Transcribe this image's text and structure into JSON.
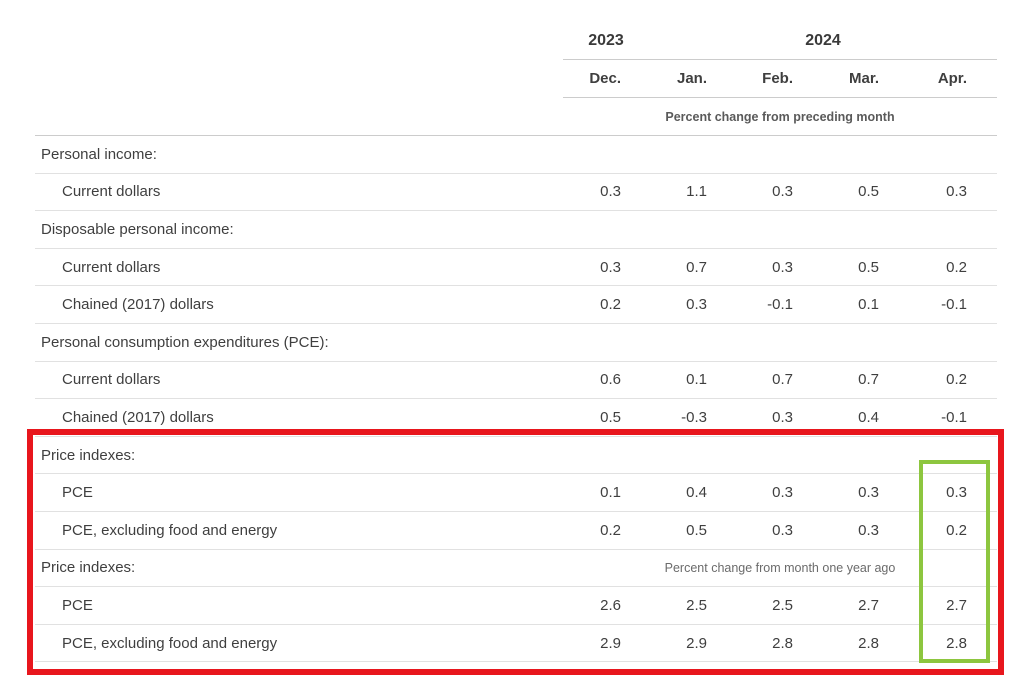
{
  "chart_data": {
    "type": "table",
    "year_groups": [
      {
        "label": "2023",
        "cols": 1
      },
      {
        "label": "2024",
        "cols": 4
      }
    ],
    "months": [
      "Dec.",
      "Jan.",
      "Feb.",
      "Mar.",
      "Apr."
    ],
    "top_unit_note": "Percent change from preceding month",
    "rows": [
      {
        "type": "section",
        "label": "Personal income:"
      },
      {
        "type": "data",
        "label": "Current dollars",
        "values": [
          "0.3",
          "1.1",
          "0.3",
          "0.5",
          "0.3"
        ]
      },
      {
        "type": "section",
        "label": "Disposable personal income:"
      },
      {
        "type": "data",
        "label": "Current dollars",
        "values": [
          "0.3",
          "0.7",
          "0.3",
          "0.5",
          "0.2"
        ]
      },
      {
        "type": "data",
        "label": "Chained (2017) dollars",
        "values": [
          "0.2",
          "0.3",
          "-0.1",
          "0.1",
          "-0.1"
        ]
      },
      {
        "type": "section",
        "label": "Personal consumption expenditures (PCE):"
      },
      {
        "type": "data",
        "label": "Current dollars",
        "values": [
          "0.6",
          "0.1",
          "0.7",
          "0.7",
          "0.2"
        ]
      },
      {
        "type": "data",
        "label": "Chained (2017) dollars",
        "values": [
          "0.5",
          "-0.3",
          "0.3",
          "0.4",
          "-0.1"
        ]
      },
      {
        "type": "section",
        "label": "Price indexes:"
      },
      {
        "type": "data",
        "label": "PCE",
        "values": [
          "0.1",
          "0.4",
          "0.3",
          "0.3",
          "0.3"
        ]
      },
      {
        "type": "data",
        "label": "PCE, excluding food and energy",
        "values": [
          "0.2",
          "0.5",
          "0.3",
          "0.3",
          "0.2"
        ]
      },
      {
        "type": "section-note",
        "label": "Price indexes:",
        "note": "Percent change from month one year ago"
      },
      {
        "type": "data",
        "label": "PCE",
        "values": [
          "2.6",
          "2.5",
          "2.5",
          "2.7",
          "2.7"
        ]
      },
      {
        "type": "data",
        "label": "PCE, excluding food and energy",
        "values": [
          "2.9",
          "2.9",
          "2.8",
          "2.8",
          "2.8"
        ]
      }
    ]
  },
  "annotations": {
    "red_box_color": "#e8161d",
    "green_box_color": "#8dc63f"
  }
}
